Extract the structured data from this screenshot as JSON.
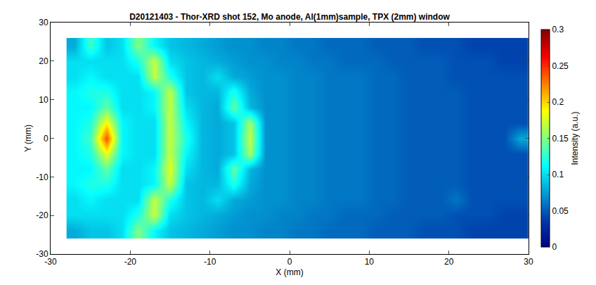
{
  "chart_data": {
    "type": "heatmap",
    "title": "D20121403 - Thor-XRD shot 152, Mo anode, Al(1mm)sample, TPX (2mm) window",
    "x_label": "X (mm)",
    "y_label": "Y (mm)",
    "color": "Jet",
    "grid": false,
    "xlim": [
      -30,
      30
    ],
    "ylim": [
      -30,
      30
    ],
    "xticks": [
      -30,
      -20,
      -10,
      0,
      10,
      20,
      30
    ],
    "yticks": [
      -30,
      -20,
      -10,
      0,
      10,
      20,
      30
    ],
    "x": [
      -27,
      -25,
      -23,
      -21,
      -19,
      -17,
      -15,
      -13,
      -11,
      -9,
      -7,
      -5,
      -3,
      -1,
      1,
      3,
      5,
      7,
      9,
      11,
      13,
      15,
      17,
      19,
      21,
      23,
      25,
      27,
      29
    ],
    "y": [
      -24,
      -20,
      -16,
      -12,
      -8,
      -4,
      0,
      4,
      8,
      12,
      16,
      20,
      24
    ],
    "z": [
      [
        0.08,
        0.09,
        0.09,
        0.1,
        0.15,
        0.11,
        0.09,
        0.085,
        0.08,
        0.075,
        0.07,
        0.07,
        0.065,
        0.065,
        0.06,
        0.06,
        0.055,
        0.055,
        0.055,
        0.05,
        0.05,
        0.05,
        0.045,
        0.045,
        0.045,
        0.04,
        0.04,
        0.04,
        0.04
      ],
      [
        0.1,
        0.1,
        0.1,
        0.1,
        0.12,
        0.17,
        0.1,
        0.09,
        0.085,
        0.08,
        0.075,
        0.07,
        0.07,
        0.065,
        0.065,
        0.06,
        0.06,
        0.055,
        0.055,
        0.055,
        0.05,
        0.05,
        0.05,
        0.05,
        0.045,
        0.045,
        0.045,
        0.04,
        0.04
      ],
      [
        0.1,
        0.11,
        0.1,
        0.1,
        0.1,
        0.17,
        0.12,
        0.09,
        0.085,
        0.1,
        0.08,
        0.075,
        0.07,
        0.07,
        0.065,
        0.065,
        0.06,
        0.06,
        0.06,
        0.055,
        0.055,
        0.05,
        0.05,
        0.05,
        0.06,
        0.045,
        0.045,
        0.045,
        0.045
      ],
      [
        0.11,
        0.12,
        0.12,
        0.1,
        0.1,
        0.11,
        0.17,
        0.09,
        0.085,
        0.085,
        0.12,
        0.08,
        0.07,
        0.07,
        0.065,
        0.065,
        0.06,
        0.06,
        0.06,
        0.055,
        0.055,
        0.05,
        0.05,
        0.05,
        0.05,
        0.045,
        0.045,
        0.045,
        0.045
      ],
      [
        0.11,
        0.11,
        0.14,
        0.1,
        0.1,
        0.11,
        0.18,
        0.1,
        0.085,
        0.08,
        0.14,
        0.085,
        0.07,
        0.07,
        0.065,
        0.065,
        0.06,
        0.06,
        0.06,
        0.055,
        0.055,
        0.05,
        0.05,
        0.05,
        0.05,
        0.045,
        0.045,
        0.045,
        0.045
      ],
      [
        0.11,
        0.12,
        0.18,
        0.11,
        0.1,
        0.1,
        0.17,
        0.11,
        0.085,
        0.08,
        0.09,
        0.16,
        0.07,
        0.07,
        0.065,
        0.065,
        0.06,
        0.06,
        0.06,
        0.055,
        0.055,
        0.05,
        0.05,
        0.05,
        0.05,
        0.045,
        0.045,
        0.045,
        0.045
      ],
      [
        0.11,
        0.13,
        0.24,
        0.11,
        0.1,
        0.1,
        0.17,
        0.12,
        0.085,
        0.08,
        0.09,
        0.17,
        0.07,
        0.07,
        0.065,
        0.065,
        0.06,
        0.06,
        0.06,
        0.055,
        0.055,
        0.05,
        0.05,
        0.05,
        0.05,
        0.045,
        0.045,
        0.045,
        0.08
      ],
      [
        0.11,
        0.12,
        0.19,
        0.11,
        0.1,
        0.1,
        0.17,
        0.11,
        0.085,
        0.08,
        0.09,
        0.16,
        0.07,
        0.07,
        0.065,
        0.065,
        0.06,
        0.06,
        0.06,
        0.055,
        0.055,
        0.05,
        0.05,
        0.05,
        0.05,
        0.045,
        0.045,
        0.045,
        0.045
      ],
      [
        0.11,
        0.11,
        0.14,
        0.1,
        0.1,
        0.11,
        0.17,
        0.1,
        0.085,
        0.08,
        0.14,
        0.085,
        0.07,
        0.07,
        0.065,
        0.065,
        0.06,
        0.06,
        0.06,
        0.055,
        0.055,
        0.05,
        0.05,
        0.05,
        0.05,
        0.045,
        0.045,
        0.045,
        0.045
      ],
      [
        0.11,
        0.12,
        0.12,
        0.1,
        0.1,
        0.11,
        0.17,
        0.09,
        0.085,
        0.085,
        0.12,
        0.08,
        0.07,
        0.07,
        0.065,
        0.065,
        0.06,
        0.06,
        0.06,
        0.055,
        0.055,
        0.05,
        0.05,
        0.05,
        0.05,
        0.045,
        0.045,
        0.045,
        0.045
      ],
      [
        0.1,
        0.11,
        0.1,
        0.1,
        0.1,
        0.17,
        0.12,
        0.09,
        0.085,
        0.1,
        0.08,
        0.075,
        0.07,
        0.07,
        0.065,
        0.065,
        0.06,
        0.06,
        0.06,
        0.055,
        0.055,
        0.05,
        0.05,
        0.05,
        0.045,
        0.045,
        0.045,
        0.045,
        0.045
      ],
      [
        0.1,
        0.1,
        0.1,
        0.1,
        0.12,
        0.17,
        0.1,
        0.09,
        0.085,
        0.08,
        0.075,
        0.07,
        0.07,
        0.065,
        0.065,
        0.06,
        0.06,
        0.055,
        0.055,
        0.055,
        0.05,
        0.05,
        0.05,
        0.05,
        0.045,
        0.045,
        0.045,
        0.04,
        0.04
      ],
      [
        0.08,
        0.13,
        0.09,
        0.1,
        0.15,
        0.11,
        0.09,
        0.085,
        0.08,
        0.075,
        0.07,
        0.07,
        0.065,
        0.065,
        0.06,
        0.06,
        0.055,
        0.055,
        0.055,
        0.05,
        0.05,
        0.05,
        0.045,
        0.045,
        0.045,
        0.04,
        0.04,
        0.04,
        0.04
      ]
    ],
    "colorbar": {
      "title": "Intensity (a.u.)",
      "range": [
        0,
        0.3
      ],
      "ticks": [
        0,
        0.05,
        0.1,
        0.15,
        0.2,
        0.25,
        0.3
      ]
    }
  }
}
